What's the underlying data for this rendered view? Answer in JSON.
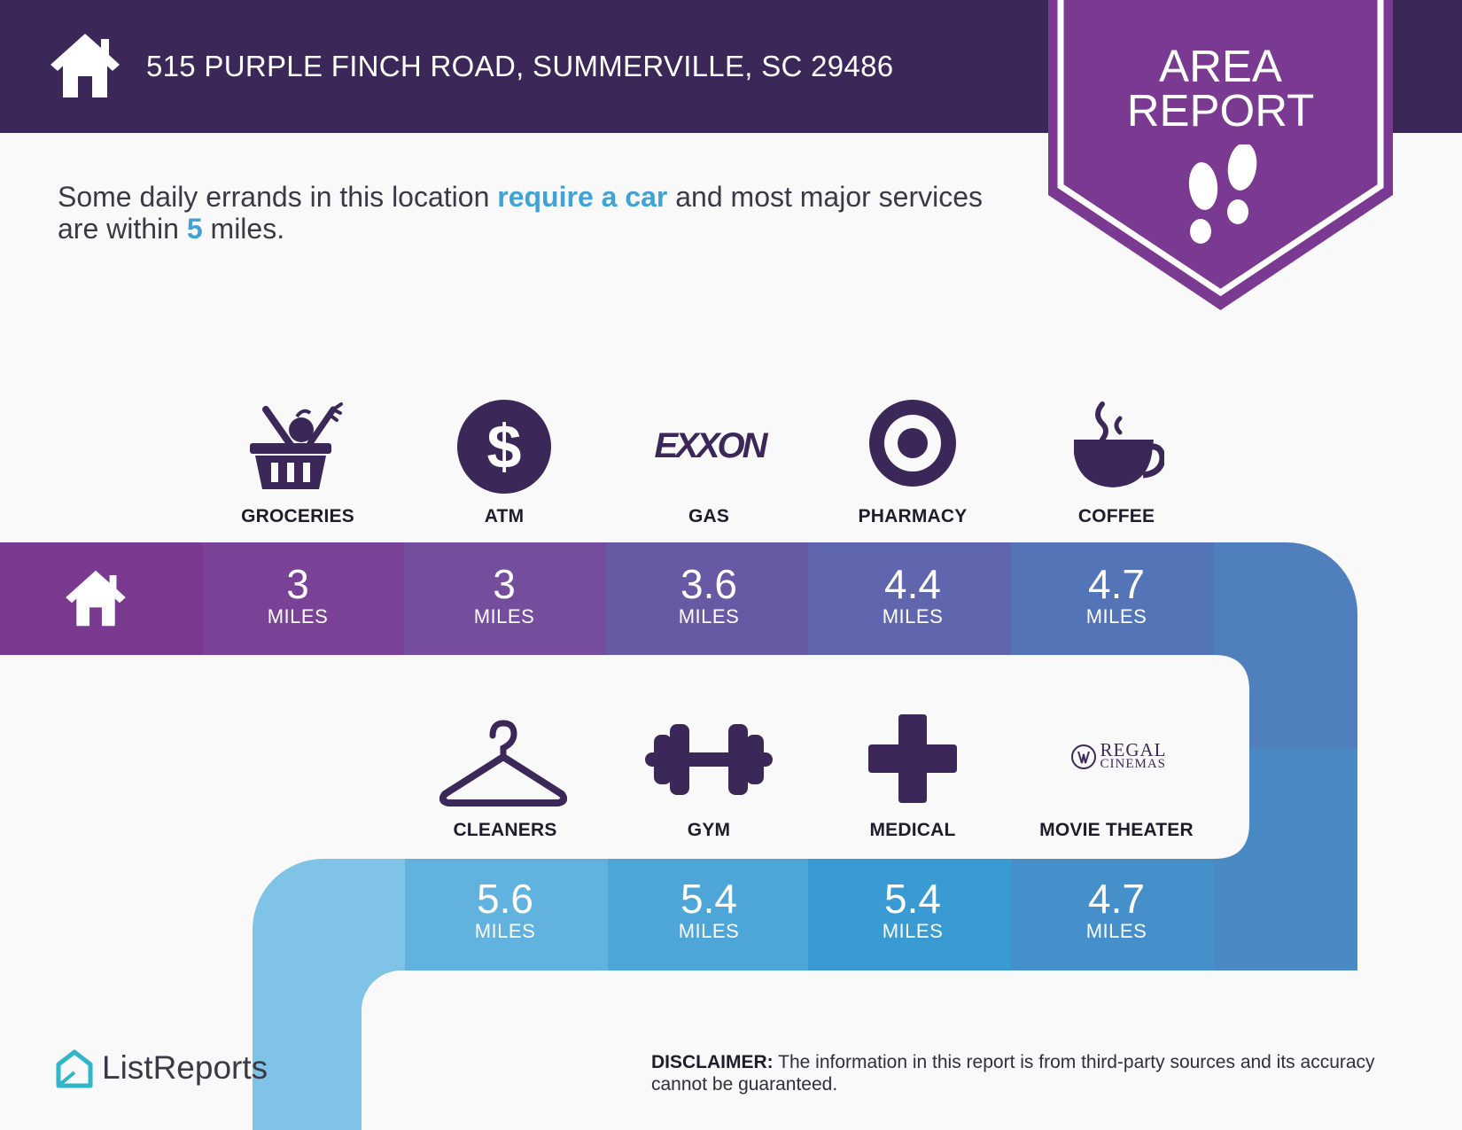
{
  "header": {
    "address": "515 PURPLE FINCH ROAD, SUMMERVILLE, SC 29486",
    "home_icon": "house-icon"
  },
  "badge": {
    "line1": "AREA",
    "line2": "REPORT",
    "icon": "footprints-icon"
  },
  "intro": {
    "part1": "Some daily errands in this location ",
    "highlight1": "require a car",
    "part2": " and most major services are within ",
    "highlight2": "5",
    "part3": " miles."
  },
  "top_row": [
    {
      "label": "GROCERIES",
      "distance": "3",
      "unit": "MILES",
      "icon": "grocery-basket-icon"
    },
    {
      "label": "ATM",
      "distance": "3",
      "unit": "MILES",
      "icon": "dollar-icon"
    },
    {
      "label": "GAS",
      "distance": "3.6",
      "unit": "MILES",
      "icon": "exxon-logo",
      "logo_text": "EXXON"
    },
    {
      "label": "PHARMACY",
      "distance": "4.4",
      "unit": "MILES",
      "icon": "target-logo"
    },
    {
      "label": "COFFEE",
      "distance": "4.7",
      "unit": "MILES",
      "icon": "coffee-cup-icon"
    }
  ],
  "bottom_row": [
    {
      "label": "CLEANERS",
      "distance": "5.6",
      "unit": "MILES",
      "icon": "hanger-icon"
    },
    {
      "label": "GYM",
      "distance": "5.4",
      "unit": "MILES",
      "icon": "dumbbell-icon"
    },
    {
      "label": "MEDICAL",
      "distance": "5.4",
      "unit": "MILES",
      "icon": "medical-cross-icon"
    },
    {
      "label": "MOVIE THEATER",
      "distance": "4.7",
      "unit": "MILES",
      "icon": "regal-cinemas-logo",
      "logo_line1": "REGAL",
      "logo_line2": "CINEMAS"
    }
  ],
  "colors": {
    "header_bg": "#3b2859",
    "badge_purple": "#7b3a91",
    "highlight_blue": "#3fa3d6",
    "icon_dark": "#3b2859"
  },
  "footer": {
    "brand": "ListReports",
    "disclaimer_label": "DISCLAIMER:",
    "disclaimer_text": " The information in this report is from third-party sources and its accuracy cannot be guaranteed."
  }
}
